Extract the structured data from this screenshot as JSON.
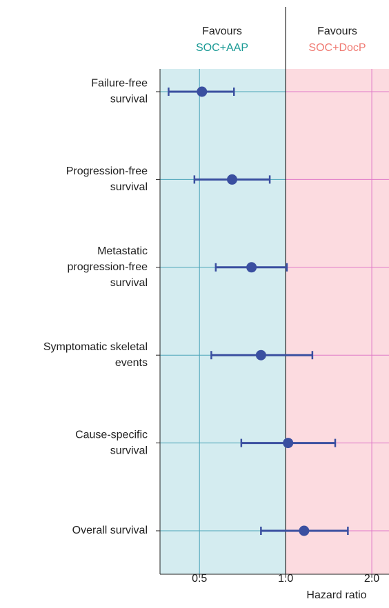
{
  "chart_data": {
    "type": "forest",
    "x_label": "Hazard ratio",
    "favours_left": [
      "Favours",
      "SOC+AAP"
    ],
    "favours_right": [
      "Favours",
      "SOC+DocP"
    ],
    "favours_left_color": "#1a9a95",
    "favours_right_color": "#f07a72",
    "categories": [
      [
        "Failure-free",
        "survival"
      ],
      [
        "Progression-free",
        "survival"
      ],
      [
        "Metastatic",
        "progression-free",
        "survival"
      ],
      [
        "Symptomatic skeletal",
        "events"
      ],
      [
        "Cause-specific",
        "survival"
      ],
      [
        "Overall survival"
      ]
    ],
    "series": [
      {
        "color": "#3a4fa0",
        "values": [
          0.51,
          0.65,
          0.76,
          0.82,
          1.02,
          1.16
        ],
        "lower": [
          0.39,
          0.48,
          0.57,
          0.55,
          0.7,
          0.82
        ],
        "upper": [
          0.66,
          0.88,
          1.01,
          1.24,
          1.49,
          1.65
        ]
      }
    ],
    "log_x": true,
    "xlim": [
      0.364,
      2.297
    ],
    "xticks": [
      0.5,
      {
        "value": 1,
        "label": "1.0"
      },
      {
        "value": 2,
        "label": "2.0"
      }
    ],
    "reference_line": 1,
    "shade_colors": [
      "#d4ecf0",
      "#fcdbe0"
    ],
    "grid_colors": [
      "#4aa3b8",
      "#e07ac8"
    ],
    "grid": true
  }
}
